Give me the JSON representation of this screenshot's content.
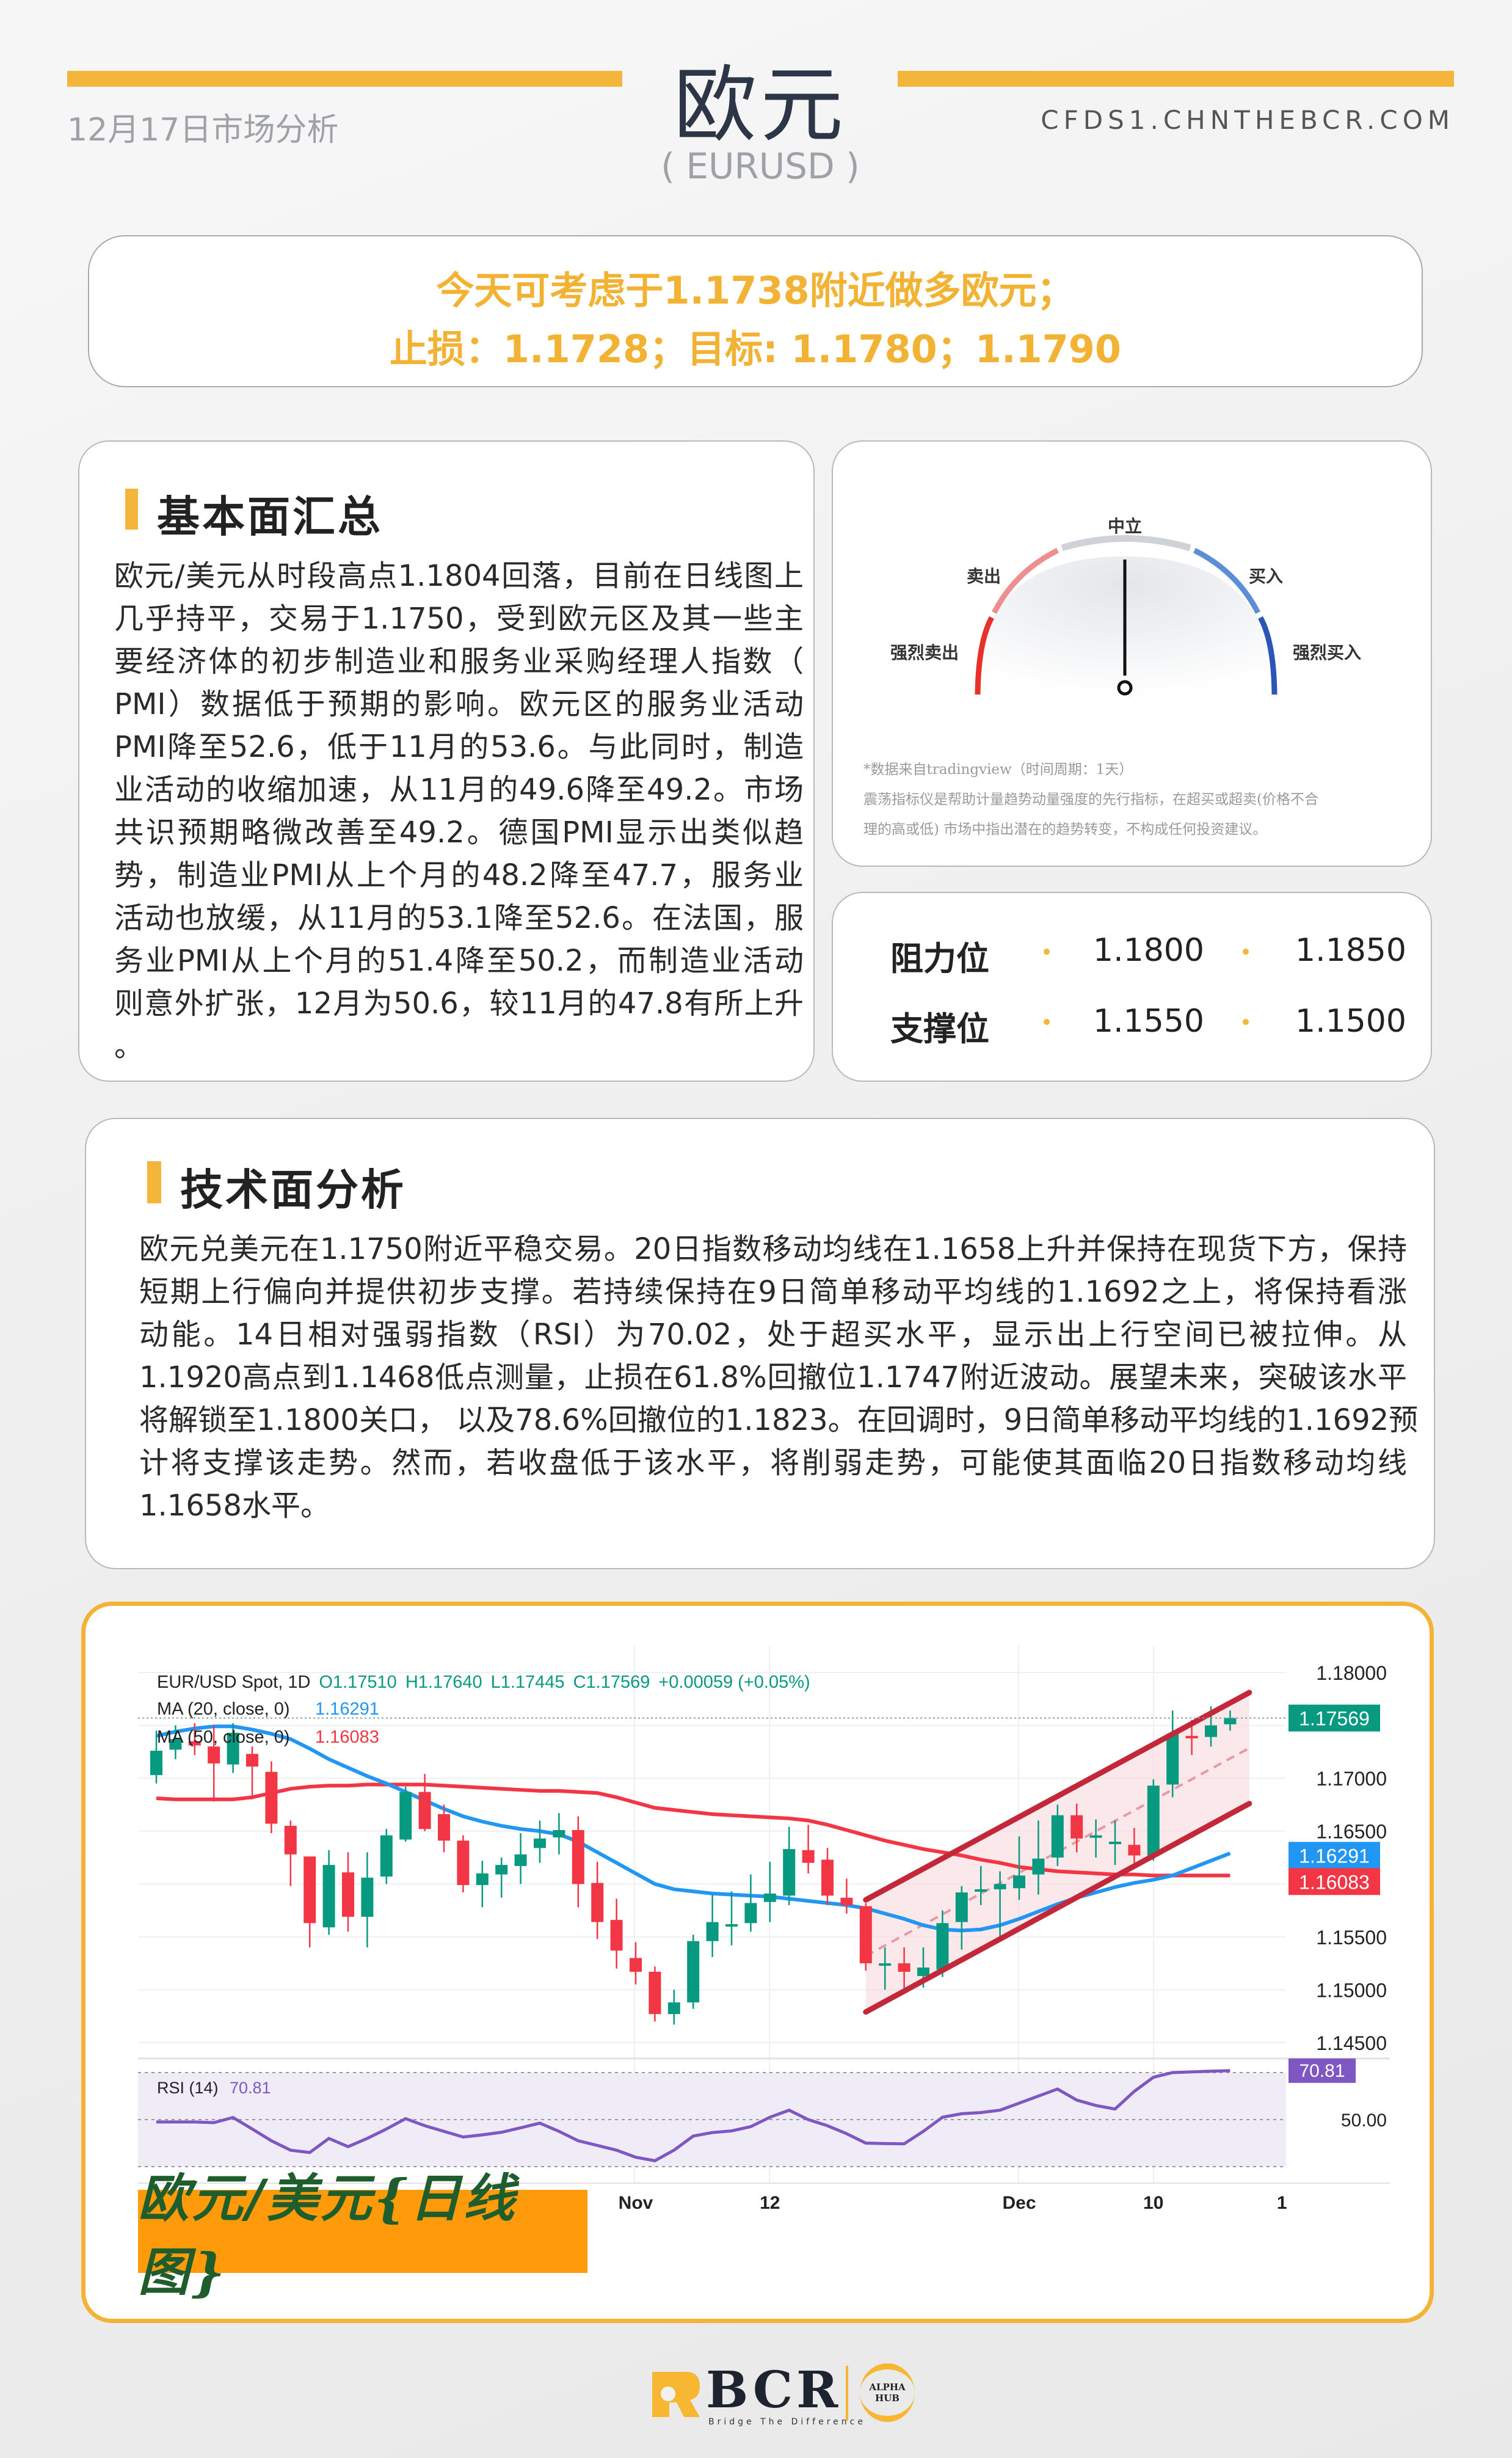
{
  "header": {
    "title": "欧元",
    "subtitle": "( EURUSD )",
    "date_label": "12月17日市场分析",
    "site": "CFDS1.CHNTHEBCR.COM"
  },
  "banner": {
    "line1": "今天可考虑于1.1738附近做多欧元；",
    "line2": "止损：1.1728；目标: 1.1780；1.1790",
    "color": "#f2b233"
  },
  "fundamentals": {
    "heading": "基本面汇总",
    "lines": [
      "欧元/美元从时段高点1.1804回落，目前在日线图上",
      "几乎持平，交易于1.1750，受到欧元区及其一些主",
      "要经济体的初步制造业和服务业采购经理人指数（",
      "PMI）数据低于预期的影响。欧元区的服务业活动",
      "PMI降至52.6，低于11月的53.6。与此同时，制造",
      "业活动的收缩加速，从11月的49.6降至49.2。市场",
      "共识预期略微改善至49.2。德国PMI显示出类似趋",
      "势，制造业PMI从上个月的48.2降至47.7，服务业",
      "活动也放缓，从11月的53.1降至52.6。在法国，服",
      "务业PMI从上个月的51.4降至50.2，而制造业活动",
      "则意外扩张，12月为50.6，较11月的47.8有所上升",
      "。"
    ]
  },
  "gauge": {
    "labels": {
      "neutral": "中立",
      "sell": "卖出",
      "buy": "买入",
      "strong_sell": "强烈卖出",
      "strong_buy": "强烈买入"
    },
    "value": "0",
    "reading": "neutral",
    "note_lines": [
      "*数据来自tradingview（时间周期：1天）",
      "震荡指标仪是帮助计量趋势动量强度的先行指标，在超买或超卖(价格不合",
      "理的高或低) 市场中指出潜在的趋势转变，不构成任何投资建议。"
    ]
  },
  "levels": {
    "resistance_label": "阻力位",
    "resistance": [
      "1.1800",
      "1.1850"
    ],
    "support_label": "支撑位",
    "support": [
      "1.1550",
      "1.1500"
    ]
  },
  "technical": {
    "heading": "技术面分析",
    "lines": [
      "欧元兑美元在1.1750附近平稳交易。20日指数移动均线在1.1658上升并保持在现货下方，保持",
      "短期上行偏向并提供初步支撑。若持续保持在9日简单移动平均线的1.1692之上，将保持看涨",
      "动能。14日相对强弱指数（RSI）为70.02，处于超买水平，显示出上行空间已被拉伸。从",
      "1.1920高点到1.1468低点测量，止损在61.8%回撤位1.1747附近波动。展望未来，突破该水平",
      "将解锁至1.1800关口， 以及78.6%回撤位的1.1823。在回调时，9日简单移动平均线的1.1692预",
      "计将支撑该走势。然而，若收盘低于该水平，将削弱走势，可能使其面临20日指数移动均线",
      "1.1658水平。"
    ]
  },
  "chart_caption": "欧元/美元{日线图}",
  "chart_data": {
    "type": "candlestick",
    "symbol_line": {
      "symbol": "EUR/USD Spot, 1D",
      "o": "O1.17510",
      "h": "H1.17640",
      "l": "L1.17445",
      "c": "C1.17569",
      "change": "+0.00059 (+0.05%)"
    },
    "ma20_label": "MA (20, close, 0)",
    "ma20_value": "1.16291",
    "ma50_label": "MA (50, close, 0)",
    "ma50_value": "1.16083",
    "rsi_label": "RSI (14)",
    "rsi_value": "70.81",
    "last_price": "1.17569",
    "ylim": [
      1.1425,
      1.1825
    ],
    "y_ticks": [
      "1.18000",
      "1.17000",
      "1.16500",
      "1.15500",
      "1.15000",
      "1.14500"
    ],
    "rsi_ticks": [
      "50.00"
    ],
    "x_ticks": [
      {
        "label": "Nov",
        "bar": 25
      },
      {
        "label": "12",
        "bar": 32
      },
      {
        "label": "Dec",
        "bar": 45
      },
      {
        "label": "10",
        "bar": 52
      },
      {
        "label": "1",
        "bar": 58.7
      }
    ],
    "candles_ohlc": [
      [
        1.1703,
        1.1745,
        1.1695,
        1.1726
      ],
      [
        1.1727,
        1.175,
        1.1718,
        1.1737
      ],
      [
        1.1735,
        1.1752,
        1.1722,
        1.1731
      ],
      [
        1.173,
        1.175,
        1.1678,
        1.1714
      ],
      [
        1.1713,
        1.1752,
        1.1705,
        1.1743
      ],
      [
        1.1723,
        1.173,
        1.168,
        1.1711
      ],
      [
        1.1706,
        1.1716,
        1.1648,
        1.1657
      ],
      [
        1.1655,
        1.166,
        1.1598,
        1.1628
      ],
      [
        1.1626,
        1.1625,
        1.154,
        1.1563
      ],
      [
        1.1559,
        1.1632,
        1.1552,
        1.1618
      ],
      [
        1.1611,
        1.163,
        1.1555,
        1.1569
      ],
      [
        1.1569,
        1.163,
        1.154,
        1.1606
      ],
      [
        1.1607,
        1.1652,
        1.16,
        1.1646
      ],
      [
        1.1642,
        1.1692,
        1.164,
        1.1687
      ],
      [
        1.1687,
        1.1704,
        1.165,
        1.1652
      ],
      [
        1.1666,
        1.1675,
        1.163,
        1.1641
      ],
      [
        1.1641,
        1.1646,
        1.1592,
        1.1599
      ],
      [
        1.1599,
        1.1622,
        1.1578,
        1.161
      ],
      [
        1.1609,
        1.1625,
        1.1587,
        1.1618
      ],
      [
        1.1617,
        1.1648,
        1.16,
        1.1628
      ],
      [
        1.1634,
        1.166,
        1.162,
        1.1643
      ],
      [
        1.1644,
        1.1667,
        1.1628,
        1.1651
      ],
      [
        1.1651,
        1.1664,
        1.1578,
        1.16
      ],
      [
        1.1601,
        1.1621,
        1.1548,
        1.1564
      ],
      [
        1.1566,
        1.1586,
        1.152,
        1.1537
      ],
      [
        1.153,
        1.1545,
        1.1505,
        1.1517
      ],
      [
        1.1517,
        1.1522,
        1.147,
        1.1477
      ],
      [
        1.1477,
        1.15,
        1.1467,
        1.1488
      ],
      [
        1.1488,
        1.1552,
        1.1482,
        1.1546
      ],
      [
        1.1546,
        1.159,
        1.1531,
        1.1564
      ],
      [
        1.1562,
        1.1593,
        1.1542,
        1.1562
      ],
      [
        1.1563,
        1.1609,
        1.1555,
        1.1582
      ],
      [
        1.1583,
        1.1621,
        1.1564,
        1.1591
      ],
      [
        1.1589,
        1.1654,
        1.158,
        1.1633
      ],
      [
        1.1632,
        1.1656,
        1.161,
        1.162
      ],
      [
        1.1623,
        1.1634,
        1.158,
        1.1589
      ],
      [
        1.1587,
        1.1605,
        1.1572,
        1.158
      ],
      [
        1.1579,
        1.1582,
        1.1518,
        1.1525
      ],
      [
        1.1525,
        1.154,
        1.15,
        1.1525
      ],
      [
        1.1525,
        1.154,
        1.1496,
        1.1517
      ],
      [
        1.1513,
        1.154,
        1.1502,
        1.1521
      ],
      [
        1.1519,
        1.1575,
        1.1512,
        1.1563
      ],
      [
        1.1564,
        1.1598,
        1.1538,
        1.1592
      ],
      [
        1.1595,
        1.1617,
        1.158,
        1.1595
      ],
      [
        1.1595,
        1.1612,
        1.155,
        1.16
      ],
      [
        1.1596,
        1.1645,
        1.1585,
        1.1608
      ],
      [
        1.1609,
        1.166,
        1.159,
        1.1624
      ],
      [
        1.1625,
        1.1675,
        1.1617,
        1.1665
      ],
      [
        1.1665,
        1.1676,
        1.163,
        1.1643
      ],
      [
        1.1646,
        1.1661,
        1.1625,
        1.1646
      ],
      [
        1.164,
        1.166,
        1.1618,
        1.164
      ],
      [
        1.1637,
        1.1653,
        1.162,
        1.1627
      ],
      [
        1.1627,
        1.1699,
        1.1622,
        1.1693
      ],
      [
        1.1694,
        1.1764,
        1.1682,
        1.1742
      ],
      [
        1.174,
        1.1755,
        1.1722,
        1.1739
      ],
      [
        1.1739,
        1.1768,
        1.173,
        1.175
      ],
      [
        1.1751,
        1.1764,
        1.1745,
        1.1757
      ]
    ],
    "ma20": [
      1.174,
      1.1744,
      1.1747,
      1.1749,
      1.1749,
      1.1746,
      1.1742,
      1.1737,
      1.1728,
      1.1718,
      1.171,
      1.1702,
      1.1695,
      1.1687,
      1.1679,
      1.1671,
      1.1664,
      1.1659,
      1.1655,
      1.1652,
      1.165,
      1.1647,
      1.164,
      1.163,
      1.162,
      1.161,
      1.16,
      1.1595,
      1.1593,
      1.1591,
      1.159,
      1.1589,
      1.1588,
      1.1586,
      1.1584,
      1.1582,
      1.158,
      1.1577,
      1.1572,
      1.1567,
      1.1561,
      1.1557,
      1.1556,
      1.1557,
      1.1561,
      1.1567,
      1.1574,
      1.1581,
      1.1587,
      1.1592,
      1.1597,
      1.1601,
      1.1604,
      1.1608,
      1.1615,
      1.1622,
      1.1629
    ],
    "ma50": [
      1.1681,
      1.168,
      1.168,
      1.168,
      1.168,
      1.1682,
      1.1686,
      1.169,
      1.1692,
      1.1693,
      1.1693,
      1.1694,
      1.1694,
      1.1694,
      1.1694,
      1.1693,
      1.1692,
      1.1691,
      1.169,
      1.1689,
      1.1688,
      1.1688,
      1.1687,
      1.1686,
      1.1682,
      1.1677,
      1.1672,
      1.167,
      1.1668,
      1.1666,
      1.1665,
      1.1664,
      1.1663,
      1.1662,
      1.166,
      1.1656,
      1.1651,
      1.1646,
      1.1641,
      1.1637,
      1.1633,
      1.163,
      1.1627,
      1.1623,
      1.162,
      1.1616,
      1.1614,
      1.1612,
      1.1611,
      1.161,
      1.1609,
      1.1609,
      1.1608,
      1.1608,
      1.1608,
      1.1608,
      1.1608
    ],
    "rsi": [
      49,
      49,
      49,
      48.7,
      50.9,
      46,
      41,
      37,
      36,
      42,
      38.5,
      42,
      46,
      50.4,
      47.4,
      45,
      42.6,
      43.5,
      44.6,
      46.5,
      48.5,
      45,
      41,
      39,
      37,
      34,
      32.5,
      37,
      43,
      44.5,
      45.2,
      47,
      51,
      54,
      50,
      47.4,
      44,
      40,
      39.8,
      39.7,
      45,
      51,
      52.5,
      53,
      54,
      57,
      60,
      63,
      58.3,
      56,
      54.5,
      62,
      68,
      70,
      70.3,
      70.6,
      70.81
    ],
    "rsi_bands": [
      70,
      50,
      30
    ],
    "channel": {
      "upper": [
        [
          37,
          1.1585
        ],
        [
          57,
          1.1781
        ]
      ],
      "lower": [
        [
          37,
          1.1479
        ],
        [
          57,
          1.1676
        ]
      ]
    },
    "colors": {
      "up": "#089981",
      "down": "#f23645",
      "ma20": "#2196f3",
      "ma50": "#f23645",
      "rsi": "#7e57c2",
      "channel": "#c2283a"
    }
  },
  "footer": {
    "brand": "BCR",
    "tagline": "Bridge The Difference",
    "partner_line1": "ALPHA",
    "partner_line2": "HUB"
  },
  "colors": {
    "accent": "#f4b63a",
    "title": "#2c3646"
  }
}
